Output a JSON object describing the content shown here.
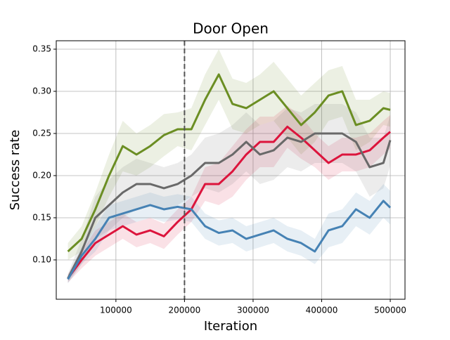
{
  "chart_data": {
    "type": "line",
    "title": "Door Open",
    "x_label": "Iteration",
    "y_label": "Success rate",
    "x": [
      30000,
      50000,
      70000,
      90000,
      110000,
      130000,
      150000,
      170000,
      190000,
      210000,
      230000,
      250000,
      270000,
      290000,
      310000,
      330000,
      350000,
      370000,
      390000,
      410000,
      430000,
      450000,
      470000,
      490000,
      500000
    ],
    "series": [
      {
        "color": "#6b8e23",
        "values": [
          0.11,
          0.125,
          0.16,
          0.2,
          0.235,
          0.225,
          0.235,
          0.248,
          0.255,
          0.255,
          0.29,
          0.32,
          0.285,
          0.28,
          0.29,
          0.3,
          0.28,
          0.26,
          0.275,
          0.295,
          0.3,
          0.26,
          0.265,
          0.28,
          0.278
        ],
        "error": [
          0.01,
          0.015,
          0.02,
          0.025,
          0.03,
          0.025,
          0.025,
          0.025,
          0.02,
          0.025,
          0.03,
          0.03,
          0.03,
          0.03,
          0.03,
          0.035,
          0.035,
          0.035,
          0.035,
          0.03,
          0.03,
          0.03,
          0.025,
          0.02,
          0.02
        ]
      },
      {
        "color": "#dc143c",
        "values": [
          0.078,
          0.1,
          0.12,
          0.13,
          0.14,
          0.13,
          0.135,
          0.128,
          0.145,
          0.16,
          0.19,
          0.19,
          0.205,
          0.225,
          0.24,
          0.24,
          0.258,
          0.245,
          0.23,
          0.215,
          0.225,
          0.225,
          0.23,
          0.245,
          0.252
        ],
        "error": [
          0.005,
          0.01,
          0.015,
          0.015,
          0.015,
          0.015,
          0.015,
          0.015,
          0.015,
          0.015,
          0.02,
          0.025,
          0.03,
          0.03,
          0.03,
          0.03,
          0.025,
          0.025,
          0.02,
          0.02,
          0.02,
          0.02,
          0.02,
          0.02,
          0.02
        ]
      },
      {
        "color": "#696969",
        "values": [
          0.078,
          0.11,
          0.15,
          0.165,
          0.18,
          0.19,
          0.19,
          0.185,
          0.19,
          0.2,
          0.215,
          0.215,
          0.225,
          0.24,
          0.225,
          0.23,
          0.245,
          0.24,
          0.25,
          0.25,
          0.25,
          0.24,
          0.21,
          0.215,
          0.242
        ],
        "error": [
          0.005,
          0.015,
          0.025,
          0.03,
          0.03,
          0.03,
          0.025,
          0.025,
          0.025,
          0.025,
          0.03,
          0.035,
          0.035,
          0.035,
          0.035,
          0.035,
          0.035,
          0.035,
          0.035,
          0.035,
          0.035,
          0.035,
          0.035,
          0.03,
          0.03
        ]
      },
      {
        "color": "#4682b4",
        "values": [
          0.077,
          0.105,
          0.125,
          0.15,
          0.155,
          0.16,
          0.165,
          0.16,
          0.163,
          0.16,
          0.14,
          0.132,
          0.135,
          0.125,
          0.13,
          0.135,
          0.125,
          0.12,
          0.11,
          0.135,
          0.14,
          0.16,
          0.15,
          0.17,
          0.162
        ],
        "error": [
          0.005,
          0.01,
          0.015,
          0.015,
          0.015,
          0.015,
          0.015,
          0.015,
          0.015,
          0.015,
          0.015,
          0.015,
          0.015,
          0.015,
          0.015,
          0.015,
          0.015,
          0.015,
          0.015,
          0.02,
          0.02,
          0.02,
          0.02,
          0.02,
          0.02
        ]
      }
    ],
    "vline": 200000,
    "xlim": [
      13000,
      521500
    ],
    "ylim": [
      0.0533,
      0.36
    ],
    "xticks": [
      100000,
      200000,
      300000,
      400000,
      500000
    ],
    "yticks": [
      {
        "value": 0.1,
        "label": "0.10"
      },
      0.15,
      {
        "value": 0.2,
        "label": "0.20"
      },
      0.25,
      {
        "value": 0.3,
        "label": "0.30"
      },
      0.35
    ],
    "grid": true
  }
}
